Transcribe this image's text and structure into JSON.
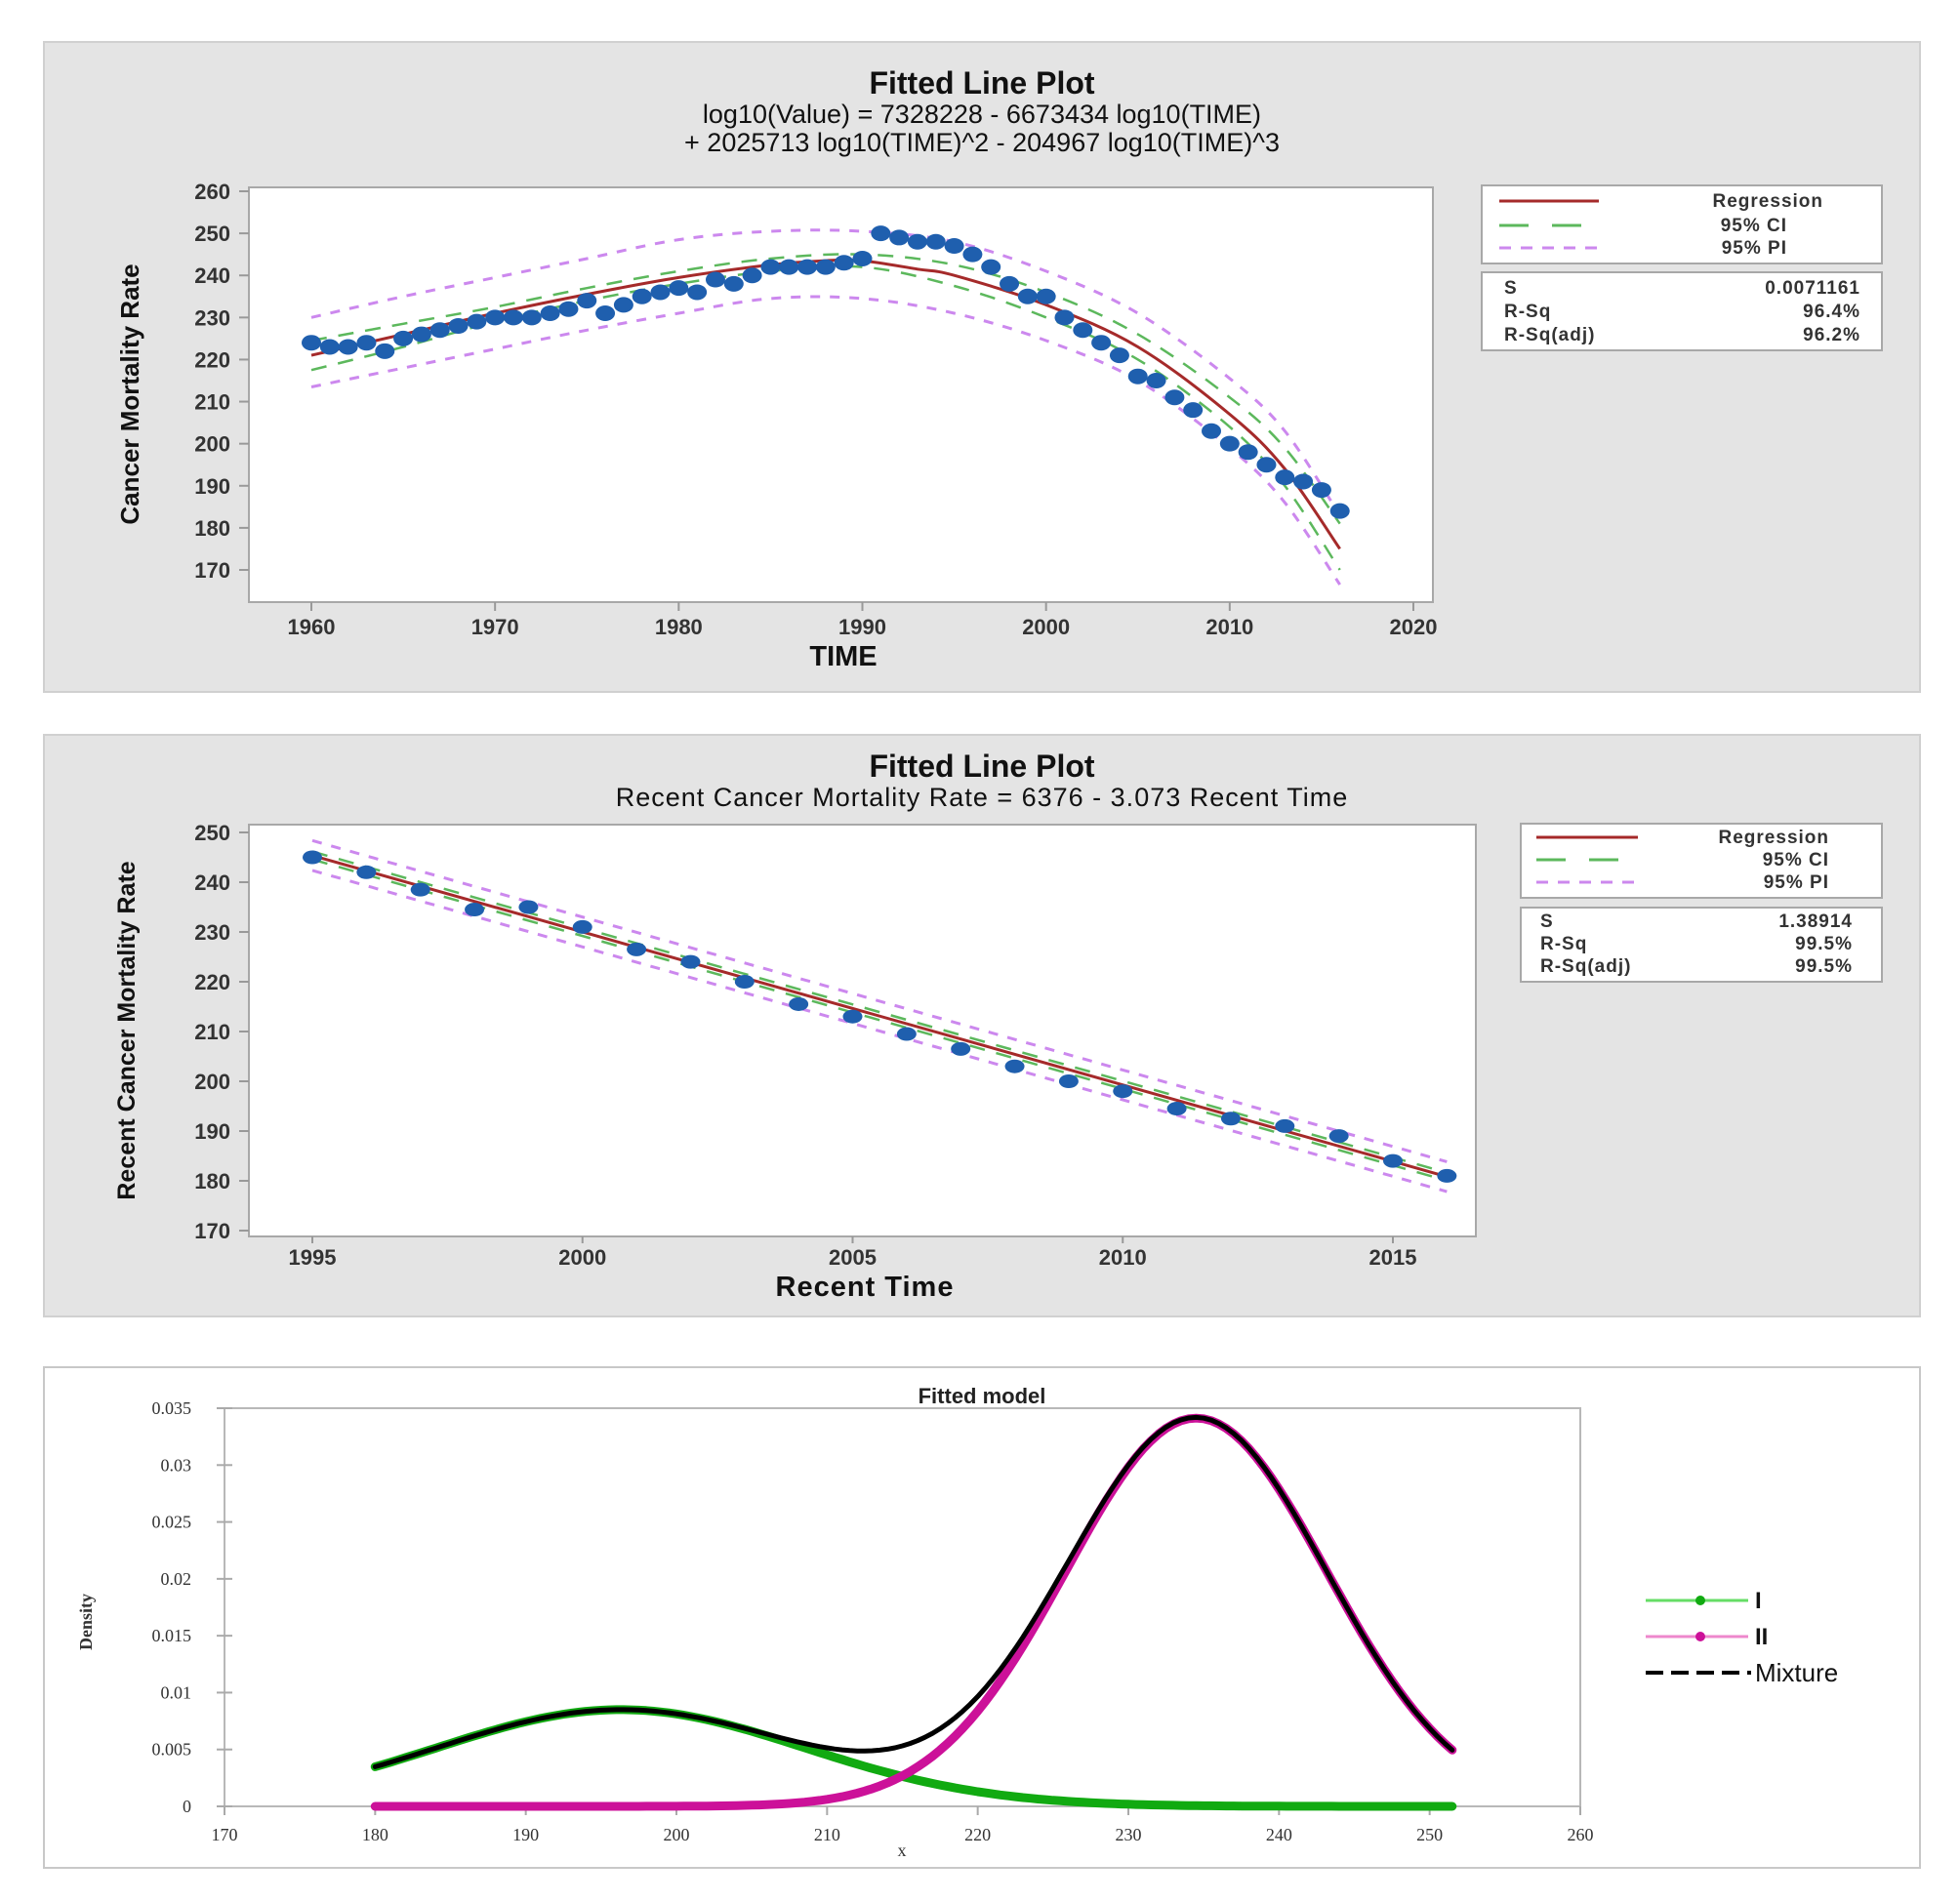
{
  "chart_data": [
    {
      "type": "scatter",
      "title": "Fitted Line Plot",
      "subtitle_lines": [
        "log10(Value) = 7328228 - 6673434 log10(TIME)",
        "+ 2025713 log10(TIME)^2 - 204967 log10(TIME)^3"
      ],
      "xlabel": "TIME",
      "ylabel": "Cancer Mortality Rate",
      "xlim": [
        1957,
        2021
      ],
      "ylim": [
        166,
        261
      ],
      "xticks": [
        1960,
        1970,
        1980,
        1990,
        2000,
        2010,
        2020
      ],
      "yticks": [
        170,
        180,
        190,
        200,
        210,
        220,
        230,
        240,
        250,
        260
      ],
      "ytick_labels": [
        "170",
        "180",
        "190",
        "200",
        "210",
        "220",
        "230",
        "240",
        "250",
        "260"
      ],
      "legend": {
        "position": "right",
        "entries": [
          {
            "label": "Regression",
            "color": "#a52a2a",
            "style": "solid"
          },
          {
            "label": "95% CI",
            "color": "#5cb85c",
            "style": "long-dash"
          },
          {
            "label": "95% PI",
            "color": "#cc88ee",
            "style": "short-dash"
          }
        ]
      },
      "stats": [
        {
          "label": "S",
          "value": "0.0071161"
        },
        {
          "label": "R-Sq",
          "value": "96.4%"
        },
        {
          "label": "R-Sq(adj)",
          "value": "96.2%"
        }
      ],
      "points": {
        "color": "#1f5fae",
        "x": [
          1960,
          1961,
          1962,
          1963,
          1964,
          1965,
          1966,
          1967,
          1968,
          1969,
          1970,
          1971,
          1972,
          1973,
          1974,
          1975,
          1976,
          1977,
          1978,
          1979,
          1980,
          1981,
          1982,
          1983,
          1984,
          1985,
          1986,
          1987,
          1988,
          1989,
          1990,
          1991,
          1992,
          1993,
          1994,
          1995,
          1996,
          1997,
          1998,
          1999,
          2000,
          2001,
          2002,
          2003,
          2004,
          2005,
          2006,
          2007,
          2008,
          2009,
          2010,
          2011,
          2012,
          2013,
          2014,
          2015,
          2016
        ],
        "y": [
          224,
          223,
          223,
          224,
          222,
          225,
          226,
          227,
          228,
          229,
          230,
          230,
          230,
          231,
          232,
          234,
          231,
          233,
          235,
          236,
          237,
          236,
          239,
          238,
          240,
          242,
          242,
          242,
          242,
          243,
          244,
          250,
          249,
          248,
          248,
          247,
          245,
          242,
          238,
          235,
          235,
          230,
          227,
          224,
          221,
          216,
          215,
          211,
          208,
          203,
          200,
          198,
          195,
          192,
          191,
          189,
          184
        ]
      },
      "regression": {
        "x": [
          1960,
          1965,
          1970,
          1975,
          1980,
          1985,
          1988,
          1990,
          1993,
          1995,
          2000,
          2005,
          2010,
          2013,
          2016
        ],
        "y": [
          221,
          226,
          231,
          235.5,
          239.5,
          242.5,
          243.5,
          243.5,
          241.5,
          240,
          233,
          223,
          207,
          194,
          175
        ]
      },
      "ci_upper": {
        "x": [
          1960,
          1965,
          1970,
          1975,
          1980,
          1985,
          1990,
          1995,
          2000,
          2005,
          2010,
          2013,
          2016
        ],
        "y": [
          224.5,
          228.5,
          232.5,
          237,
          241,
          244,
          245,
          242.5,
          236,
          226,
          211,
          199,
          181
        ]
      },
      "ci_lower": {
        "x": [
          1960,
          1965,
          1970,
          1975,
          1980,
          1985,
          1990,
          1995,
          2000,
          2005,
          2010,
          2013,
          2016
        ],
        "y": [
          217.5,
          223,
          229,
          234,
          238,
          241,
          242,
          237.5,
          230,
          220,
          204,
          190,
          170
        ]
      },
      "pi_upper": {
        "x": [
          1960,
          1965,
          1970,
          1975,
          1980,
          1985,
          1990,
          1995,
          2000,
          2005,
          2010,
          2013,
          2016
        ],
        "y": [
          230,
          235,
          239.5,
          244,
          248.5,
          250.5,
          250.5,
          248,
          241,
          231,
          215.5,
          203,
          183
        ]
      },
      "pi_lower": {
        "x": [
          1960,
          1965,
          1970,
          1975,
          1980,
          1985,
          1990,
          1995,
          2000,
          2005,
          2010,
          2013,
          2016
        ],
        "y": [
          213.5,
          218,
          222.5,
          227,
          231,
          234.5,
          234.5,
          231,
          224.5,
          215,
          199,
          186,
          166.5
        ]
      }
    },
    {
      "type": "scatter",
      "title": "Fitted Line Plot",
      "subtitle_lines": [
        "Recent Cancer Mortality Rate = 6376 - 3.073 Recent Time"
      ],
      "xlabel": "Recent Time",
      "ylabel": "Recent Cancer Mortality Rate",
      "xlim": [
        1994,
        2019
      ],
      "ylim": [
        170,
        250
      ],
      "xticks": [
        1995,
        2000,
        2005,
        2010,
        2015
      ],
      "yticks": [
        170,
        180,
        190,
        200,
        210,
        220,
        230,
        240,
        250
      ],
      "legend": {
        "position": "right",
        "entries": [
          {
            "label": "Regression",
            "color": "#a52a2a",
            "style": "solid"
          },
          {
            "label": "95% CI",
            "color": "#5cb85c",
            "style": "long-dash"
          },
          {
            "label": "95% PI",
            "color": "#cc88ee",
            "style": "short-dash"
          }
        ]
      },
      "stats": [
        {
          "label": "S",
          "value": "1.38914"
        },
        {
          "label": "R-Sq",
          "value": "99.5%"
        },
        {
          "label": "R-Sq(adj)",
          "value": "99.5%"
        }
      ],
      "points": {
        "color": "#1f5fae",
        "x": [
          1995,
          1996,
          1997,
          1998,
          1999,
          2000,
          2001,
          2002,
          2003,
          2004,
          2005,
          2006,
          2007,
          2008,
          2009,
          2010,
          2011,
          2012,
          2013,
          2014,
          2015,
          2016
        ],
        "y": [
          245,
          242,
          238.5,
          234.5,
          235,
          231,
          226.5,
          224,
          220,
          215.5,
          213,
          209.5,
          206.5,
          203,
          200,
          198,
          194.5,
          192.5,
          191,
          189,
          184,
          181
        ]
      },
      "regression": {
        "intercept": 6376,
        "slope": -3.073,
        "x": [
          1995,
          2016
        ]
      },
      "ci_halfwidth": 0.8,
      "pi_halfwidth": 3.0
    },
    {
      "type": "line",
      "title": "Fitted model",
      "xlabel": "x",
      "ylabel": "Density",
      "xlim": [
        170,
        260
      ],
      "ylim": [
        0,
        0.035
      ],
      "xticks": [
        170,
        180,
        190,
        200,
        210,
        220,
        230,
        240,
        250,
        260
      ],
      "yticks": [
        0,
        0.005,
        0.01,
        0.015,
        0.02,
        0.025,
        0.03,
        0.035
      ],
      "ytick_labels": [
        "0",
        "0.005",
        "0.01",
        "0.015",
        "0.02",
        "0.025",
        "0.03",
        "0.035"
      ],
      "legend": {
        "position": "right",
        "entries": [
          {
            "label": "I",
            "color": "#22bb22",
            "style": "line-marker"
          },
          {
            "label": "II",
            "color": "#cc2299",
            "style": "line-marker"
          },
          {
            "label": "Mixture",
            "color": "#000000",
            "style": "dashed"
          }
        ]
      },
      "x_range": [
        180,
        251.5
      ],
      "components": [
        {
          "name": "I",
          "color": "#11aa11",
          "weight": 0.26,
          "mean": 196.3,
          "sd": 12.2
        },
        {
          "name": "II",
          "color": "#cc1199",
          "weight": 0.74,
          "mean": 234.5,
          "sd": 8.65
        }
      ],
      "mixture_color": "#000000"
    }
  ]
}
